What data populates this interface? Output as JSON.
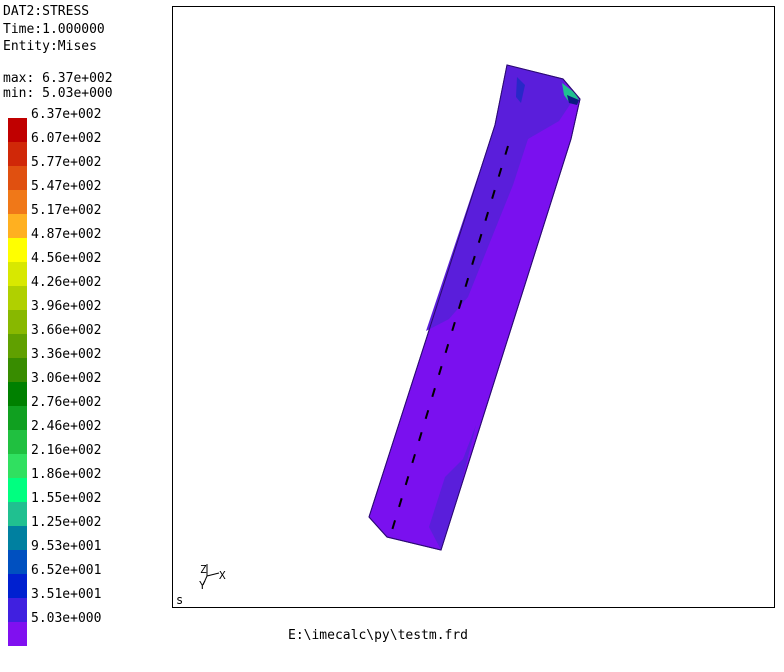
{
  "header": {
    "dataset": "DAT2:STRESS",
    "time": "Time:1.000000",
    "entity": "Entity:Mises",
    "max": "max: 6.37e+002",
    "min": "min: 5.03e+000"
  },
  "legend": {
    "items": [
      {
        "label": "6.37e+002",
        "color": "#c00000"
      },
      {
        "label": "6.07e+002",
        "color": "#d02808"
      },
      {
        "label": "5.77e+002",
        "color": "#e05010"
      },
      {
        "label": "5.47e+002",
        "color": "#f07818"
      },
      {
        "label": "5.17e+002",
        "color": "#ffb020"
      },
      {
        "label": "4.87e+002",
        "color": "#ffff00"
      },
      {
        "label": "4.56e+002",
        "color": "#d8e800"
      },
      {
        "label": "4.26e+002",
        "color": "#b0d000"
      },
      {
        "label": "3.96e+002",
        "color": "#88b800"
      },
      {
        "label": "3.66e+002",
        "color": "#60a000"
      },
      {
        "label": "3.36e+002",
        "color": "#388c00"
      },
      {
        "label": "3.06e+002",
        "color": "#008000"
      },
      {
        "label": "2.76e+002",
        "color": "#10a020"
      },
      {
        "label": "2.46e+002",
        "color": "#20c040"
      },
      {
        "label": "2.16e+002",
        "color": "#30e060"
      },
      {
        "label": "1.86e+002",
        "color": "#00ff80"
      },
      {
        "label": "1.55e+002",
        "color": "#20c090"
      },
      {
        "label": "1.25e+002",
        "color": "#0080a0"
      },
      {
        "label": "9.53e+001",
        "color": "#0050c0"
      },
      {
        "label": "6.52e+001",
        "color": "#0020d0"
      },
      {
        "label": "3.51e+001",
        "color": "#4020e0"
      },
      {
        "label": "5.03e+000",
        "color": "#8010f0"
      }
    ]
  },
  "viewport": {
    "triad_z": "Z",
    "triad_y": "Y",
    "triad_x": "X",
    "corner_label": "s"
  },
  "footer": {
    "filename": "E:\\imecalc\\py\\testm.frd"
  }
}
